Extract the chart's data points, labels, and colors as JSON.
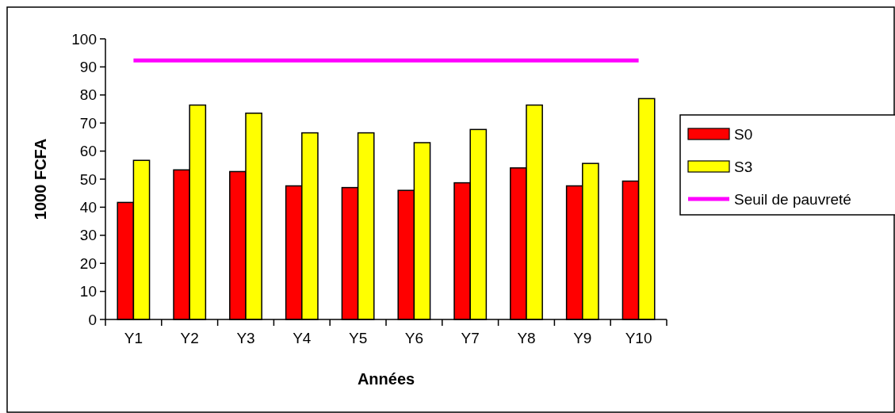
{
  "chart_data": {
    "type": "bar",
    "xlabel": "Années",
    "ylabel": "1000 FCFA",
    "categories": [
      "Y1",
      "Y2",
      "Y3",
      "Y4",
      "Y5",
      "Y6",
      "Y7",
      "Y8",
      "Y9",
      "Y10"
    ],
    "series": [
      {
        "name": "S0",
        "color": "#ff0000",
        "values": [
          41.7,
          53.3,
          52.7,
          47.6,
          47,
          46,
          48.7,
          54,
          47.6,
          49.3
        ]
      },
      {
        "name": "S3",
        "color": "#ffff00",
        "values": [
          56.7,
          76.4,
          73.5,
          66.5,
          66.5,
          63,
          67.7,
          76.4,
          55.6,
          78.7
        ]
      },
      {
        "name": "Seuil de pauvreté",
        "type": "line",
        "color": "#ff00ff",
        "values": [
          92.3,
          92.3,
          92.3,
          92.3,
          92.3,
          92.3,
          92.3,
          92.3,
          92.3,
          92.3
        ]
      }
    ],
    "ylim": [
      0,
      100
    ],
    "yticks": [
      0,
      10,
      20,
      30,
      40,
      50,
      60,
      70,
      80,
      90,
      100
    ],
    "legend": "right",
    "grid": false
  }
}
